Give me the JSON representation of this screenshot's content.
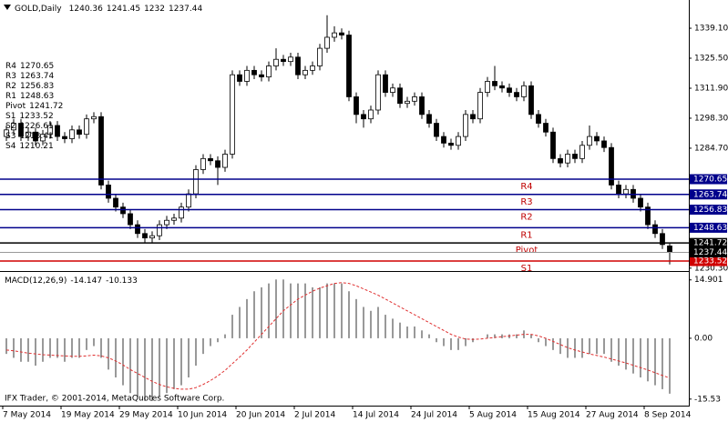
{
  "chart_data": [
    {
      "type": "candlestick",
      "title": "GOLD,Daily",
      "categories": [
        "7 May 2014",
        null,
        null,
        null,
        null,
        null,
        null,
        null,
        "19 May 2014",
        null,
        null,
        null,
        null,
        null,
        null,
        null,
        "29 May 2014",
        null,
        null,
        null,
        null,
        null,
        null,
        null,
        "10 Jun 2014",
        null,
        null,
        null,
        null,
        null,
        null,
        null,
        "20 Jun 2014",
        null,
        null,
        null,
        null,
        null,
        null,
        null,
        "2 Jul 2014",
        null,
        null,
        null,
        null,
        null,
        null,
        null,
        "14 Jul 2014",
        null,
        null,
        null,
        null,
        null,
        null,
        null,
        "24 Jul 2014",
        null,
        null,
        null,
        null,
        null,
        null,
        null,
        "5 Aug 2014",
        null,
        null,
        null,
        null,
        null,
        null,
        null,
        "15 Aug 2014",
        null,
        null,
        null,
        null,
        null,
        null,
        null,
        "27 Aug 2014",
        null,
        null,
        null,
        null,
        null,
        null,
        null,
        "8 Sep 2014",
        null,
        null,
        null
      ],
      "ohlc": [
        [
          1290,
          1295,
          1288,
          1293
        ],
        [
          1293,
          1298,
          1291,
          1296
        ],
        [
          1296,
          1298,
          1288,
          1290
        ],
        [
          1290,
          1294,
          1288,
          1292
        ],
        [
          1292,
          1294,
          1286,
          1288
        ],
        [
          1288,
          1293,
          1286,
          1291
        ],
        [
          1291,
          1297,
          1289,
          1295
        ],
        [
          1295,
          1297,
          1288,
          1290
        ],
        [
          1290,
          1292,
          1287,
          1289
        ],
        [
          1289,
          1295,
          1287,
          1293
        ],
        [
          1293,
          1295,
          1289,
          1291
        ],
        [
          1291,
          1300,
          1289,
          1298
        ],
        [
          1298,
          1301,
          1296,
          1299
        ],
        [
          1299,
          1301,
          1266,
          1268
        ],
        [
          1268,
          1270,
          1260,
          1262
        ],
        [
          1262,
          1264,
          1256,
          1258
        ],
        [
          1258,
          1260,
          1253,
          1255
        ],
        [
          1255,
          1257,
          1248,
          1250
        ],
        [
          1250,
          1252,
          1244,
          1246
        ],
        [
          1246,
          1248,
          1242,
          1244
        ],
        [
          1244,
          1247,
          1242,
          1245
        ],
        [
          1245,
          1252,
          1243,
          1250
        ],
        [
          1250,
          1254,
          1248,
          1252
        ],
        [
          1252,
          1255,
          1250,
          1253
        ],
        [
          1253,
          1260,
          1251,
          1258
        ],
        [
          1258,
          1266,
          1256,
          1264
        ],
        [
          1264,
          1277,
          1262,
          1275
        ],
        [
          1275,
          1282,
          1273,
          1280
        ],
        [
          1280,
          1282,
          1277,
          1279
        ],
        [
          1279,
          1281,
          1268,
          1276
        ],
        [
          1276,
          1284,
          1274,
          1282
        ],
        [
          1282,
          1320,
          1280,
          1318
        ],
        [
          1318,
          1320,
          1313,
          1315
        ],
        [
          1315,
          1322,
          1313,
          1320
        ],
        [
          1320,
          1322,
          1316,
          1318
        ],
        [
          1318,
          1320,
          1315,
          1317
        ],
        [
          1317,
          1324,
          1315,
          1322
        ],
        [
          1322,
          1330,
          1320,
          1325
        ],
        [
          1325,
          1327,
          1322,
          1324
        ],
        [
          1324,
          1328,
          1322,
          1326
        ],
        [
          1326,
          1328,
          1316,
          1318
        ],
        [
          1318,
          1322,
          1316,
          1320
        ],
        [
          1320,
          1324,
          1318,
          1322
        ],
        [
          1322,
          1332,
          1320,
          1330
        ],
        [
          1330,
          1345,
          1328,
          1335
        ],
        [
          1335,
          1340,
          1333,
          1337
        ],
        [
          1337,
          1339,
          1334,
          1336
        ],
        [
          1336,
          1338,
          1306,
          1308
        ],
        [
          1308,
          1310,
          1296,
          1300
        ],
        [
          1300,
          1302,
          1294,
          1298
        ],
        [
          1298,
          1304,
          1296,
          1302
        ],
        [
          1302,
          1320,
          1300,
          1318
        ],
        [
          1318,
          1320,
          1308,
          1310
        ],
        [
          1310,
          1314,
          1308,
          1312
        ],
        [
          1312,
          1314,
          1303,
          1305
        ],
        [
          1305,
          1308,
          1303,
          1306
        ],
        [
          1306,
          1310,
          1304,
          1308
        ],
        [
          1308,
          1310,
          1298,
          1300
        ],
        [
          1300,
          1302,
          1294,
          1296
        ],
        [
          1296,
          1298,
          1288,
          1290
        ],
        [
          1290,
          1292,
          1285,
          1287
        ],
        [
          1287,
          1289,
          1284,
          1286
        ],
        [
          1286,
          1292,
          1284,
          1290
        ],
        [
          1290,
          1302,
          1288,
          1300
        ],
        [
          1300,
          1302,
          1296,
          1298
        ],
        [
          1298,
          1312,
          1296,
          1310
        ],
        [
          1310,
          1317,
          1308,
          1315
        ],
        [
          1315,
          1322,
          1311,
          1313
        ],
        [
          1313,
          1315,
          1310,
          1312
        ],
        [
          1312,
          1314,
          1308,
          1310
        ],
        [
          1310,
          1312,
          1306,
          1308
        ],
        [
          1308,
          1315,
          1306,
          1313
        ],
        [
          1313,
          1315,
          1298,
          1300
        ],
        [
          1300,
          1302,
          1294,
          1296
        ],
        [
          1296,
          1298,
          1290,
          1292
        ],
        [
          1292,
          1294,
          1278,
          1280
        ],
        [
          1280,
          1282,
          1276,
          1278
        ],
        [
          1278,
          1284,
          1276,
          1282
        ],
        [
          1282,
          1284,
          1278,
          1280
        ],
        [
          1280,
          1288,
          1278,
          1286
        ],
        [
          1286,
          1295,
          1284,
          1290
        ],
        [
          1290,
          1292,
          1286,
          1288
        ],
        [
          1288,
          1290,
          1283,
          1285
        ],
        [
          1285,
          1287,
          1266,
          1268
        ],
        [
          1268,
          1270,
          1262,
          1264
        ],
        [
          1264,
          1268,
          1262,
          1266
        ],
        [
          1266,
          1268,
          1260,
          1262
        ],
        [
          1262,
          1264,
          1256,
          1258
        ],
        [
          1258,
          1260,
          1248,
          1250
        ],
        [
          1250,
          1252,
          1244,
          1246
        ],
        [
          1246,
          1248,
          1239,
          1241
        ],
        [
          1240.36,
          1241.45,
          1232.0,
          1237.44
        ]
      ],
      "colors": {
        "up": "#ffffff",
        "down": "#000000",
        "outline": "#000000"
      },
      "ylim": [
        1229.0,
        1351.9
      ],
      "yticks": [
        {
          "value": 1230.3,
          "label": "1230.30"
        },
        {
          "value": 1284.7,
          "label": "1284.70"
        },
        {
          "value": 1298.3,
          "label": "1298.30"
        },
        {
          "value": 1311.9,
          "label": "1311.90"
        },
        {
          "value": 1325.5,
          "label": "1325.50"
        },
        {
          "value": 1339.1,
          "label": "1339.10"
        }
      ],
      "levels": [
        {
          "name": "R4",
          "value": 1270.65,
          "color": "#00008b"
        },
        {
          "name": "R3",
          "value": 1263.74,
          "color": "#00008b"
        },
        {
          "name": "R2",
          "value": 1256.83,
          "color": "#00008b"
        },
        {
          "name": "R1",
          "value": 1248.63,
          "color": "#00008b"
        },
        {
          "name": "Pivot",
          "value": 1241.72,
          "color": "#000000"
        },
        {
          "name": "S1",
          "value": 1233.52,
          "color": "#d00000"
        },
        {
          "name": "S2",
          "value": 1226.61,
          "color": "#d00000"
        },
        {
          "name": "S3",
          "value": 1218.41,
          "color": "#d00000"
        },
        {
          "name": "S4",
          "value": 1210.21,
          "color": "#d00000"
        }
      ]
    },
    {
      "type": "macd",
      "title": "MACD(12,26,9)",
      "histogram": [
        -4,
        -5,
        -6,
        -6,
        -7,
        -6,
        -5,
        -5,
        -6,
        -5,
        -5,
        -3,
        -2,
        -5,
        -8,
        -10,
        -12,
        -14,
        -15,
        -16,
        -16,
        -15,
        -14,
        -13,
        -12,
        -10,
        -7,
        -4,
        -2,
        -1,
        1,
        6,
        8,
        10,
        12,
        13,
        14,
        15,
        15,
        14,
        14,
        14,
        13,
        13,
        14,
        14,
        14,
        12,
        10,
        8,
        7,
        8,
        6,
        5,
        4,
        3,
        3,
        2,
        1,
        -1,
        -2,
        -3,
        -3,
        -2,
        -1,
        0,
        1,
        1,
        1,
        1,
        1,
        2,
        1,
        -1,
        -2,
        -3,
        -4,
        -5,
        -5,
        -5,
        -4,
        -4,
        -4,
        -6,
        -7,
        -8,
        -9,
        -10,
        -11,
        -12,
        -13,
        -14.147
      ],
      "signal": [
        -3,
        -3.2,
        -3.5,
        -3.8,
        -4,
        -4.2,
        -4.3,
        -4.4,
        -4.5,
        -4.6,
        -4.6,
        -4.5,
        -4.3,
        -4.5,
        -5,
        -5.8,
        -6.8,
        -8,
        -9,
        -10,
        -11,
        -11.8,
        -12.4,
        -12.8,
        -13,
        -13,
        -12.6,
        -11.8,
        -10.8,
        -9.6,
        -8.2,
        -6.5,
        -4.8,
        -3,
        -1,
        1,
        3,
        5,
        7,
        8.5,
        10,
        11,
        12,
        12.8,
        13.4,
        14,
        14.2,
        14,
        13.4,
        12.6,
        11.8,
        11,
        10,
        9,
        8,
        7,
        6,
        5,
        4,
        3,
        2,
        1,
        0.3,
        -0.2,
        -0.3,
        -0.2,
        0,
        0.2,
        0.4,
        0.6,
        0.8,
        1,
        1,
        0.6,
        0,
        -0.8,
        -1.6,
        -2.4,
        -3,
        -3.5,
        -4,
        -4.4,
        -4.8,
        -5.3,
        -5.8,
        -6.3,
        -6.9,
        -7.5,
        -8.1,
        -8.8,
        -9.5,
        -10.133
      ],
      "colors": {
        "histogram": "#555555",
        "signal": "#e03030"
      },
      "ylim": [
        -17.2,
        16.7
      ],
      "yticks": [
        14.901,
        {
          "value": 0,
          "label": "0.00"
        },
        -15.53
      ],
      "annotation": "IFX Trader, © 2001-2014, MetaQuotes Software Corp."
    }
  ]
}
